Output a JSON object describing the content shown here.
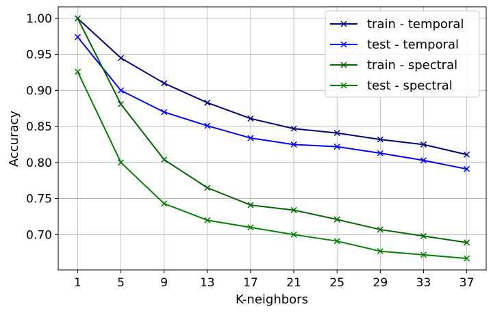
{
  "chart_data": {
    "type": "line",
    "xlabel": "K-neighbors",
    "ylabel": "Accuracy",
    "x": [
      1,
      5,
      9,
      13,
      17,
      21,
      25,
      29,
      33,
      37
    ],
    "xlim": [
      -0.8,
      38.8
    ],
    "ylim": [
      0.651,
      1.016
    ],
    "xticks": [
      1,
      5,
      9,
      13,
      17,
      21,
      25,
      29,
      33,
      37
    ],
    "yticks": [
      0.7,
      0.75,
      0.8,
      0.85,
      0.9,
      0.95,
      1.0
    ],
    "ytick_labels": [
      "0.70",
      "0.75",
      "0.80",
      "0.85",
      "0.90",
      "0.95",
      "1.00"
    ],
    "grid": true,
    "legend_position": "top-right",
    "marker": "x",
    "series": [
      {
        "name": "train - temporal",
        "color": "#000080",
        "values": [
          1.0,
          0.945,
          0.91,
          0.883,
          0.861,
          0.847,
          0.841,
          0.832,
          0.825,
          0.811
        ]
      },
      {
        "name": "test - temporal",
        "color": "#0000ff",
        "values": [
          0.974,
          0.9,
          0.87,
          0.851,
          0.834,
          0.825,
          0.822,
          0.813,
          0.803,
          0.791
        ]
      },
      {
        "name": "train - spectral",
        "color": "#006400",
        "values": [
          1.0,
          0.881,
          0.804,
          0.765,
          0.741,
          0.734,
          0.721,
          0.707,
          0.698,
          0.689
        ]
      },
      {
        "name": "test - spectral",
        "color": "#008000",
        "values": [
          0.926,
          0.8,
          0.743,
          0.72,
          0.71,
          0.7,
          0.691,
          0.677,
          0.672,
          0.667
        ]
      }
    ]
  }
}
